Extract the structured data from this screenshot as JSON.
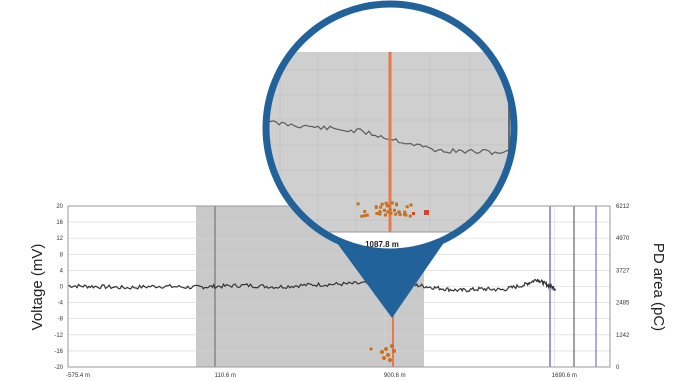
{
  "chart_data": {
    "type": "line",
    "title": "",
    "xlabel": "",
    "ylabel": "Voltage (mV)",
    "ylabel_right": "PD area (pC)",
    "x_ticks": [
      "-575.4 m",
      "110.6 m",
      "900.6 m",
      "1690.6 m"
    ],
    "y_ticks": [
      "20",
      "16",
      "12",
      "8",
      "4",
      "0",
      "-4",
      "-8",
      "-12",
      "-16",
      "-20"
    ],
    "y2_ticks": [
      "6212",
      "4970",
      "3727",
      "2485",
      "1242",
      "0"
    ],
    "ylim": [
      -20,
      20
    ],
    "y2lim": [
      0,
      6212
    ],
    "grid": true,
    "highlight_region_label": "shaded analysis window",
    "marker_label": "1087.8 m",
    "marker_position_m": 1087.8,
    "series": [
      {
        "values_x_m": [
          -575,
          -450,
          -300,
          -150,
          0,
          110,
          250,
          400,
          550,
          700,
          850,
          950,
          1050,
          1150,
          1250,
          1350,
          1450,
          1550,
          1610,
          1650,
          1700
        ],
        "values_y_mV": [
          0.2,
          0.0,
          -0.3,
          0.1,
          -0.2,
          0.0,
          0.3,
          -0.1,
          0.4,
          0.6,
          0.9,
          0.8,
          0.3,
          -0.4,
          -1.0,
          -0.6,
          -0.8,
          0.4,
          1.8,
          0.6,
          -0.6
        ]
      }
    ],
    "pd_events_m": [
      1040,
      1065,
      1080,
      1087,
      1092,
      1100,
      1110
    ]
  },
  "zoom": {
    "marker_label": "1087.8 m"
  },
  "colors": {
    "shade": "#c9c9c9",
    "trace": "#333333",
    "marker": "#e8794a",
    "pd_points": "#c9701e",
    "frame": "#22629a",
    "grid": "#d5d5d5",
    "blue_line": "#5858c8"
  }
}
